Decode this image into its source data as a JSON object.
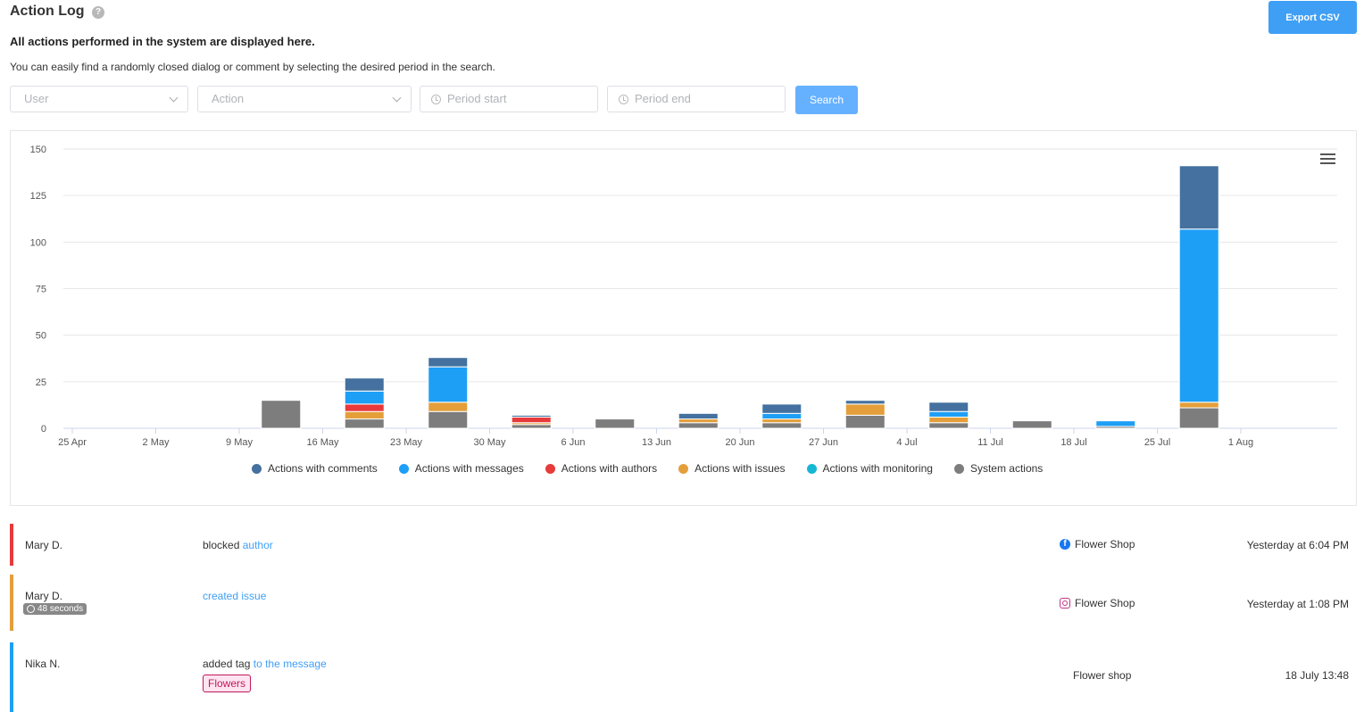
{
  "header": {
    "title": "Action Log",
    "help_icon": "?",
    "export_label": "Export CSV",
    "subtitle": "All actions performed in the system are displayed here.",
    "description": "You can easily find a randomly closed dialog or comment by selecting the desired period in the search."
  },
  "filters": {
    "user_placeholder": "User",
    "action_placeholder": "Action",
    "period_start_placeholder": "Period start",
    "period_end_placeholder": "Period end",
    "search_label": "Search"
  },
  "chart_data": {
    "type": "bar",
    "stacked": true,
    "ylim": [
      0,
      150
    ],
    "yticks": [
      0,
      25,
      50,
      75,
      100,
      125,
      150
    ],
    "xticks": [
      "25 Apr",
      "2 May",
      "9 May",
      "16 May",
      "23 May",
      "30 May",
      "6 Jun",
      "13 Jun",
      "20 Jun",
      "27 Jun",
      "4 Jul",
      "11 Jul",
      "18 Jul",
      "25 Jul",
      "1 Aug"
    ],
    "categories": [
      "9 May",
      "16 May",
      "23 May",
      "30 May",
      "6 Jun",
      "13 Jun",
      "20 Jun",
      "27 Jun",
      "4 Jul",
      "11 Jul",
      "18 Jul",
      "25 Jul"
    ],
    "grid": true,
    "legend_position": "bottom",
    "series": [
      {
        "name": "System actions",
        "color": "#7d7d7d",
        "values": [
          15,
          5,
          9,
          2,
          5,
          3,
          3,
          7,
          3,
          4,
          1,
          11
        ]
      },
      {
        "name": "Actions with monitoring",
        "color": "#17b7d4",
        "values": [
          0,
          0,
          0,
          0,
          0,
          0,
          0,
          0,
          0,
          0,
          0,
          0
        ]
      },
      {
        "name": "Actions with issues",
        "color": "#e49f3a",
        "values": [
          0,
          4,
          5,
          1,
          0,
          2,
          2,
          6,
          3,
          0,
          0,
          3
        ]
      },
      {
        "name": "Actions with authors",
        "color": "#e83a3a",
        "values": [
          0,
          4,
          0,
          3,
          0,
          0,
          0,
          0,
          0,
          0,
          0,
          0
        ]
      },
      {
        "name": "Actions with messages",
        "color": "#1e9ff6",
        "values": [
          0,
          7,
          19,
          0,
          0,
          0,
          3,
          0,
          3,
          0,
          3,
          93
        ]
      },
      {
        "name": "Actions with comments",
        "color": "#44719f",
        "values": [
          0,
          7,
          5,
          1,
          0,
          3,
          5,
          2,
          5,
          0,
          0,
          34
        ]
      }
    ],
    "legend": [
      {
        "name": "Actions with comments",
        "color": "#44719f"
      },
      {
        "name": "Actions with messages",
        "color": "#1e9ff6"
      },
      {
        "name": "Actions with authors",
        "color": "#e83a3a"
      },
      {
        "name": "Actions with issues",
        "color": "#e49f3a"
      },
      {
        "name": "Actions with monitoring",
        "color": "#17b7d4"
      },
      {
        "name": "System actions",
        "color": "#7d7d7d"
      }
    ]
  },
  "log": [
    {
      "user": "Mary D.",
      "action_text": "blocked",
      "action_link": "author",
      "source_icon": "facebook-icon",
      "source": "Flower Shop",
      "time": "Yesterday at 6:04 PM",
      "bar_color": "#e83a3a"
    },
    {
      "user": "Mary D.",
      "duration": "48 seconds",
      "action_text": "",
      "action_link": "created issue",
      "source_icon": "instagram-icon",
      "source": "Flower Shop",
      "time": "Yesterday at 1:08 PM",
      "bar_color": "#e49f3a"
    },
    {
      "user": "Nika N.",
      "action_text": "added tag",
      "action_link": "to the message",
      "tag": "Flowers",
      "source": "Flower shop",
      "time": "18 July 13:48",
      "bar_color": "#1e9ff6"
    }
  ]
}
